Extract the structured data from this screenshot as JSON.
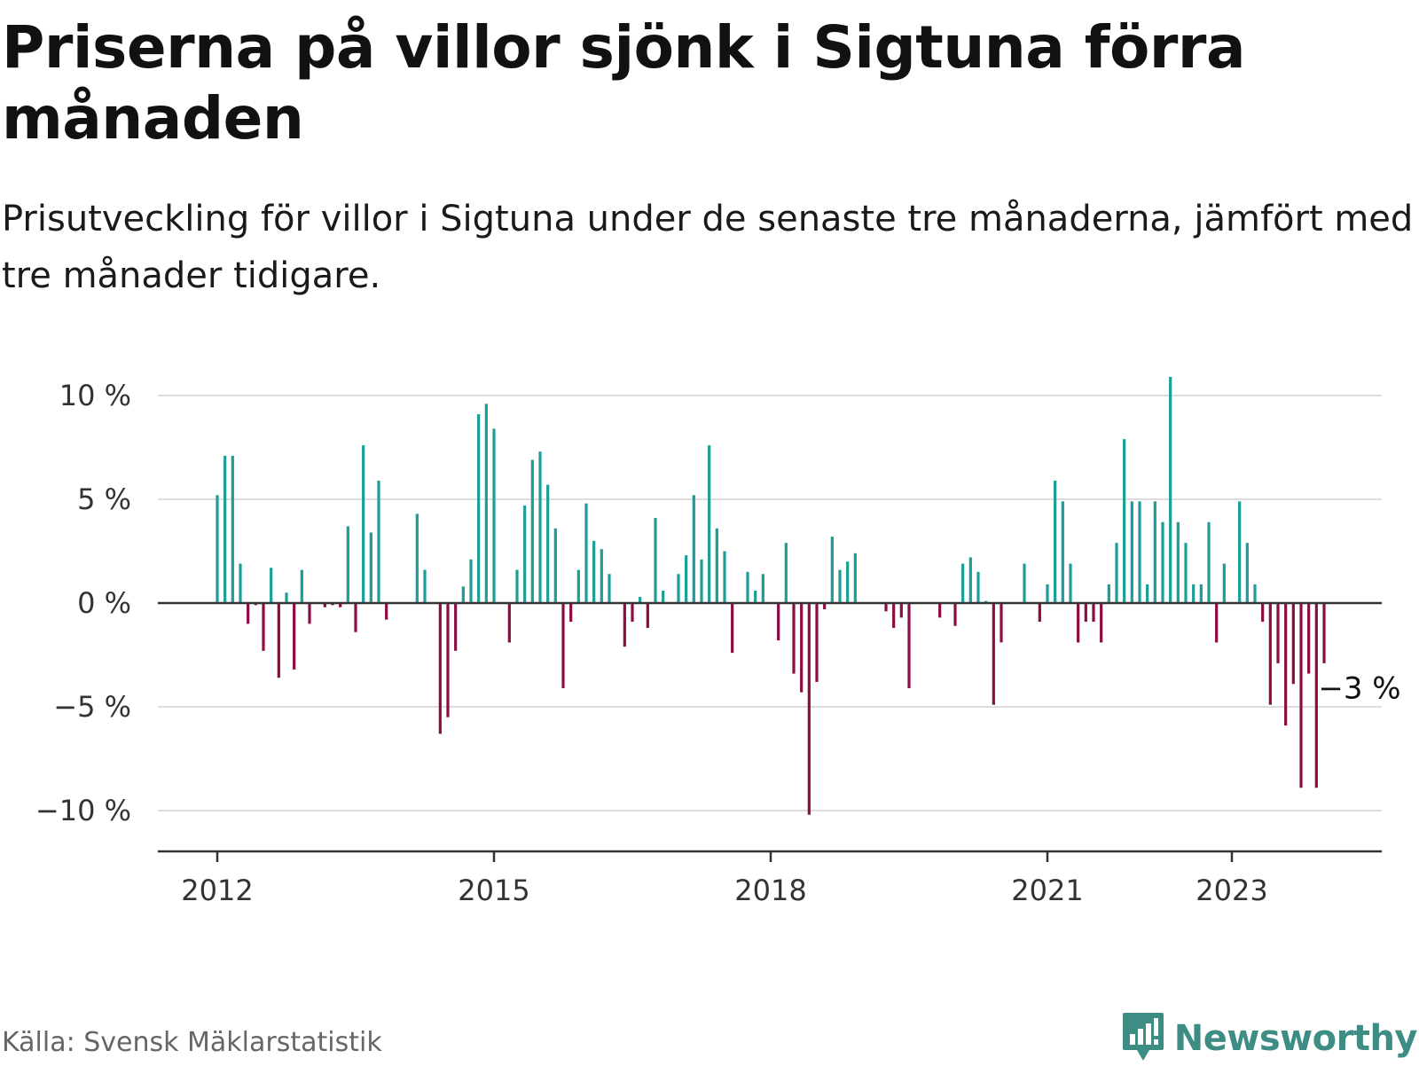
{
  "header": {
    "title": "Priserna på villor sjönk i Sigtuna förra månaden",
    "subtitle": "Prisutveckling för villor i Sigtuna under de senaste tre månaderna, jämfört med tre månader tidigare."
  },
  "footer": {
    "source": "Källa: Svensk Mäklarstatistik",
    "brand": "Newsworthy"
  },
  "colors": {
    "positive": "#1a9e96",
    "negative": "#8c0c44",
    "grid": "#dddddd",
    "axis": "#333333",
    "brand": "#3d8d84"
  },
  "chart_data": {
    "type": "bar",
    "x_start": "2012-01",
    "x_step": "month",
    "ylim": [
      -11.5,
      11.5
    ],
    "yticks": [
      10,
      5,
      0,
      -5,
      -10
    ],
    "ytick_labels": [
      "10 %",
      "5 %",
      "0 %",
      "−5 %",
      "−10 %"
    ],
    "xticks": [
      "2012",
      "2015",
      "2018",
      "2021",
      "2023"
    ],
    "grid": true,
    "legend": "none",
    "annotation": {
      "text": "−3 %",
      "target": "last"
    },
    "values": [
      5.2,
      7.1,
      7.1,
      1.9,
      -1.0,
      -0.1,
      -2.3,
      1.7,
      -3.6,
      0.5,
      -3.2,
      1.6,
      -1.0,
      0.0,
      -0.2,
      -0.1,
      -0.2,
      3.7,
      -1.4,
      7.6,
      3.4,
      5.9,
      -0.8,
      0.0,
      0.0,
      0.0,
      4.3,
      1.6,
      0.0,
      -6.3,
      -5.5,
      -2.3,
      0.8,
      2.1,
      9.1,
      9.6,
      8.4,
      0.0,
      -1.9,
      1.6,
      4.7,
      6.9,
      7.3,
      5.7,
      3.6,
      -4.1,
      -0.9,
      1.6,
      4.8,
      3.0,
      2.6,
      1.4,
      0.0,
      -2.1,
      -0.9,
      0.3,
      -1.2,
      4.1,
      0.6,
      0.0,
      1.4,
      2.3,
      5.2,
      2.1,
      7.6,
      3.6,
      2.5,
      -2.4,
      0.0,
      1.5,
      0.6,
      1.4,
      0.0,
      -1.8,
      2.9,
      -3.4,
      -4.3,
      -10.2,
      -3.8,
      -0.3,
      3.2,
      1.6,
      2.0,
      2.4,
      0.0,
      0.0,
      0.0,
      -0.4,
      -1.2,
      -0.7,
      -4.1,
      0.0,
      0.0,
      0.0,
      -0.7,
      0.0,
      -1.1,
      1.9,
      2.2,
      1.5,
      0.1,
      -4.9,
      -1.9,
      0.0,
      0.0,
      1.9,
      0.0,
      -0.9,
      0.9,
      5.9,
      4.9,
      1.9,
      -1.9,
      -0.9,
      -0.9,
      -1.9,
      0.9,
      2.9,
      7.9,
      4.9,
      4.9,
      0.9,
      4.9,
      3.9,
      10.9,
      3.9,
      2.9,
      0.9,
      0.9,
      3.9,
      -1.9,
      1.9,
      0.0,
      4.9,
      2.9,
      0.9,
      -0.9,
      -4.9,
      -2.9,
      -5.9,
      -3.9,
      -8.9,
      -3.4,
      -8.9,
      -2.9
    ]
  }
}
